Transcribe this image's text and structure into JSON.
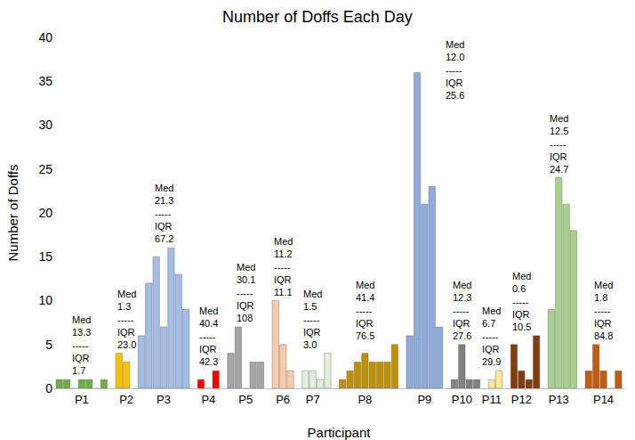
{
  "chart_data": {
    "type": "bar",
    "title": "Number of Doffs Each Day",
    "x_label": "Participant",
    "y_label": "Number of Doffs",
    "categories": [
      null,
      null,
      null,
      "P1",
      null,
      null,
      null,
      null,
      null,
      "P2",
      null,
      null,
      null,
      null,
      "P3",
      null,
      null,
      null,
      null,
      null,
      "P4",
      null,
      null,
      null,
      null,
      "P5",
      null,
      null,
      null,
      null,
      "P6",
      null,
      null,
      null,
      "P7",
      null,
      null,
      null,
      null,
      null,
      null,
      "P8",
      null,
      null,
      null,
      null,
      null,
      null,
      null,
      "P9",
      null,
      null,
      null,
      null,
      "P10",
      null,
      null,
      null,
      "P11",
      null,
      null,
      null,
      "P12",
      null,
      null,
      null,
      null,
      "P13",
      null,
      null,
      null,
      null,
      null,
      "P14",
      null,
      null
    ],
    "values": [
      1,
      1,
      0,
      1,
      1,
      0,
      1,
      null,
      4,
      3,
      null,
      6,
      12,
      15,
      7,
      16,
      13,
      9,
      null,
      1,
      0,
      2,
      null,
      4,
      7,
      0,
      3,
      3,
      null,
      10,
      5,
      2,
      null,
      2,
      2,
      1,
      4,
      null,
      1,
      2,
      3,
      4,
      3,
      3,
      3,
      5,
      null,
      6,
      36,
      21,
      23,
      7,
      null,
      1,
      5,
      1,
      1,
      null,
      1,
      2,
      null,
      5,
      2,
      1,
      6,
      null,
      9,
      24,
      21,
      18,
      null,
      2,
      5,
      2,
      0,
      2
    ],
    "colors": [
      "#70ad47",
      "#70ad47",
      "#70ad47",
      "#70ad47",
      "#70ad47",
      "#70ad47",
      "#70ad47",
      null,
      "#ffc000",
      "#ffc000",
      null,
      "#a4bde6",
      "#a4bde6",
      "#a4bde6",
      "#a4bde6",
      "#a4bde6",
      "#a4bde6",
      "#a4bde6",
      null,
      "#ff0000",
      "#ff0000",
      "#ff0000",
      null,
      "#a6a6a6",
      "#a6a6a6",
      "#a6a6a6",
      "#a6a6a6",
      "#a6a6a6",
      null,
      "#f8cbad",
      "#f8cbad",
      "#f8cbad",
      null,
      "#e2efda",
      "#e2efda",
      "#e2efda",
      "#e2efda",
      null,
      "#bf9000",
      "#bf9000",
      "#bf9000",
      "#bf9000",
      "#bf9000",
      "#bf9000",
      "#bf9000",
      "#bf9000",
      null,
      "#8faadc",
      "#8faadc",
      "#8faadc",
      "#8faadc",
      "#8faadc",
      null,
      "#808080",
      "#808080",
      "#808080",
      "#808080",
      null,
      "#ffe699",
      "#ffe699",
      null,
      "#843c0c",
      "#843c0c",
      "#843c0c",
      "#843c0c",
      null,
      "#a9d18e",
      "#a9d18e",
      "#a9d18e",
      "#a9d18e",
      null,
      "#c55a11",
      "#c55a11",
      "#c55a11",
      "#c55a11",
      "#c55a11"
    ],
    "ylim": [
      0,
      40
    ],
    "yticks": [
      0,
      5,
      10,
      15,
      20,
      25,
      30,
      35,
      40
    ],
    "grid": false,
    "annotations": [
      {
        "category": "P1",
        "text": [
          "Med",
          "13.3",
          "-----",
          "IQR",
          "1.7"
        ]
      },
      {
        "category": "P2",
        "text": [
          "Med",
          "1.3",
          "-----",
          "IQR",
          "23.0"
        ]
      },
      {
        "category": "P3",
        "text": [
          "Med",
          "21.3",
          "-----",
          "IQR",
          "67.2"
        ]
      },
      {
        "category": "P4",
        "text": [
          "Med",
          "40.4",
          "-----",
          "IQR",
          "42.3"
        ]
      },
      {
        "category": "P5",
        "text": [
          "Med",
          "30.1",
          "-----",
          "IQR",
          "108"
        ]
      },
      {
        "category": "P6",
        "text": [
          "Med",
          "11.2",
          "-----",
          "IQR",
          "11.1"
        ]
      },
      {
        "category": "P7",
        "text": [
          "Med",
          "1.5",
          "-----",
          "IQR",
          "3.0"
        ]
      },
      {
        "category": "P8",
        "text": [
          "Med",
          "41.4",
          "-----",
          "IQR",
          "76.5"
        ]
      },
      {
        "category": "P9",
        "text": [
          "Med",
          "12.0",
          "-----",
          "IQR",
          "25.6"
        ]
      },
      {
        "category": "P10",
        "text": [
          "Med",
          "12.3",
          "-----",
          "IQR",
          "27.6"
        ]
      },
      {
        "category": "P11",
        "text": [
          "Med",
          "6.7",
          "-----",
          "IQR",
          "29.9"
        ]
      },
      {
        "category": "P12",
        "text": [
          "Med",
          "0.6",
          "-----",
          "IQR",
          "10.5"
        ]
      },
      {
        "category": "P13",
        "text": [
          "Med",
          "12.5",
          "-----",
          "IQR",
          "24.7"
        ]
      },
      {
        "category": "P14",
        "text": [
          "Med",
          "1.8",
          "-----",
          "IQR",
          "84.8"
        ]
      }
    ]
  }
}
